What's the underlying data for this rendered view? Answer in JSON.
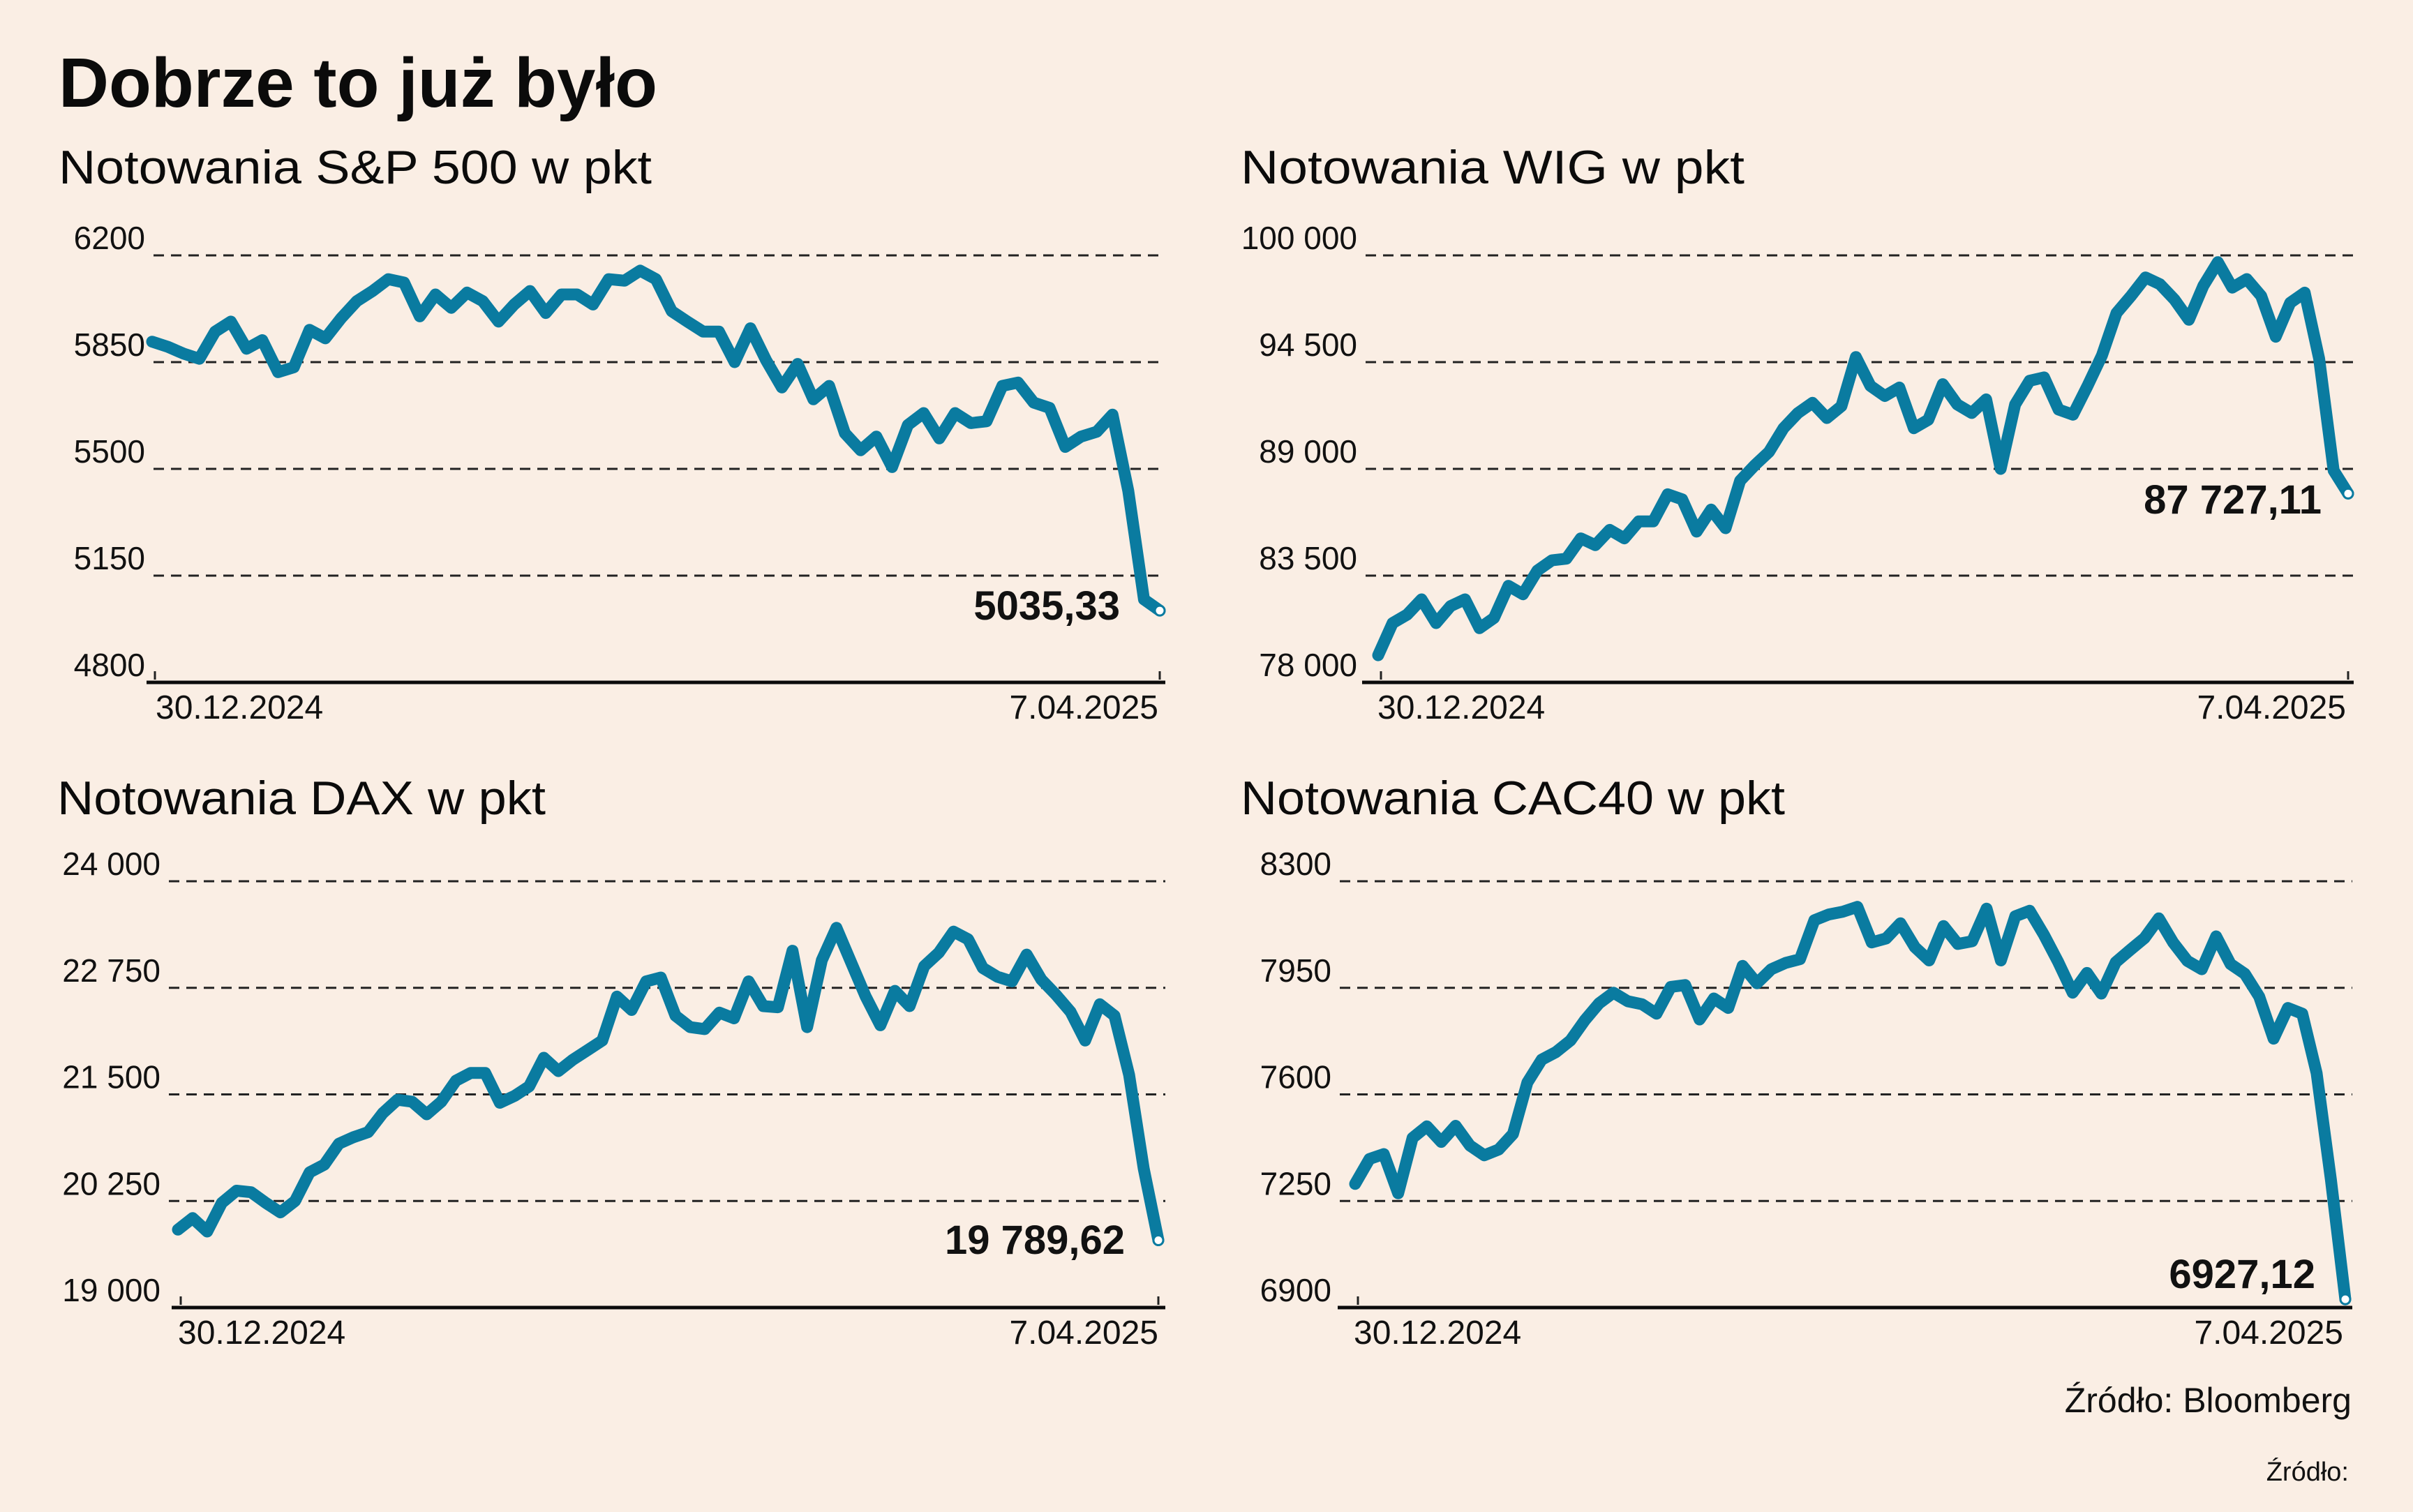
{
  "title": "Dobrze to już było",
  "source": "Źródło: Bloomberg",
  "source_footer": "Źródło:",
  "colors": {
    "background": "#faeee4",
    "line": "#0a7ba0",
    "text": "#0b0b0b"
  },
  "chart_data": [
    {
      "type": "line",
      "title": "Notowania S&P 500 w pkt",
      "x_labels": [
        "30.12.2024",
        "7.04.2025"
      ],
      "yticks": [
        6200,
        5850,
        5500,
        5150,
        4800
      ],
      "ytick_labels": [
        "6200",
        "5850",
        "5500",
        "5150",
        "4800"
      ],
      "ylim": [
        4800,
        6200
      ],
      "grid": true,
      "last_value_label": "5035,33",
      "series": [
        {
          "name": "S&P 500",
          "values": [
            5917,
            5900,
            5878,
            5861,
            5950,
            5983,
            5894,
            5922,
            5817,
            5833,
            5956,
            5928,
            5994,
            6050,
            6083,
            6122,
            6111,
            6000,
            6072,
            6028,
            6078,
            6050,
            5983,
            6039,
            6083,
            6011,
            6072,
            6072,
            6039,
            6122,
            6117,
            6150,
            6122,
            6017,
            5983,
            5950,
            5950,
            5850,
            5961,
            5856,
            5767,
            5844,
            5728,
            5772,
            5617,
            5561,
            5606,
            5506,
            5644,
            5683,
            5600,
            5683,
            5650,
            5656,
            5772,
            5783,
            5717,
            5700,
            5572,
            5606,
            5622,
            5678,
            5428,
            5072,
            5035.33
          ]
        }
      ]
    },
    {
      "type": "line",
      "title": "Notowania WIG w pkt",
      "x_labels": [
        "30.12.2024",
        "7.04.2025"
      ],
      "yticks": [
        100000,
        94500,
        89000,
        83500,
        78000
      ],
      "ytick_labels": [
        "100 000",
        "94 500",
        "89 000",
        "83 500",
        "78 000"
      ],
      "ylim": [
        78000,
        100000
      ],
      "grid": true,
      "last_value_label": "87 727,11",
      "series": [
        {
          "name": "WIG",
          "values": [
            79397,
            81056,
            81492,
            82278,
            81056,
            81929,
            82278,
            80794,
            81318,
            82976,
            82540,
            83762,
            84286,
            84373,
            85421,
            85071,
            85857,
            85421,
            86294,
            86294,
            87691,
            87429,
            85770,
            86905,
            85945,
            88389,
            89175,
            89873,
            91095,
            91881,
            92405,
            91619,
            92230,
            94762,
            93278,
            92754,
            93191,
            91095,
            91532,
            93365,
            92318,
            91881,
            92579,
            89000,
            92318,
            93540,
            93714,
            92056,
            91794,
            93278,
            94849,
            97032,
            97905,
            98865,
            98516,
            97730,
            96683,
            98429,
            99651,
            98341,
            98778,
            97905,
            95810,
            97556,
            98079,
            94675,
            88913,
            87727.11
          ]
        }
      ]
    },
    {
      "type": "line",
      "title": "Notowania DAX w pkt",
      "x_labels": [
        "30.12.2024",
        "7.04.2025"
      ],
      "yticks": [
        24000,
        22750,
        21500,
        20250,
        19000
      ],
      "ytick_labels": [
        "24 000",
        "22 750",
        "21 500",
        "20 250",
        "19 000"
      ],
      "ylim": [
        19000,
        24000
      ],
      "grid": true,
      "last_value_label": "19 789,62",
      "series": [
        {
          "name": "DAX",
          "values": [
            19914,
            20049,
            19892,
            20228,
            20371,
            20353,
            20228,
            20116,
            20250,
            20586,
            20676,
            20922,
            20998,
            21057,
            21281,
            21437,
            21415,
            21267,
            21415,
            21661,
            21751,
            21751,
            21402,
            21482,
            21594,
            21930,
            21773,
            21908,
            22020,
            22132,
            22647,
            22490,
            22826,
            22871,
            22423,
            22289,
            22266,
            22459,
            22392,
            22826,
            22535,
            22522,
            23185,
            22289,
            23073,
            23453,
            23050,
            22647,
            22311,
            22714,
            22535,
            23005,
            23162,
            23409,
            23319,
            22983,
            22880,
            22826,
            23140,
            22849,
            22669,
            22468,
            22132,
            22557,
            22423,
            21729,
            20631,
            19789.62
          ]
        }
      ]
    },
    {
      "type": "line",
      "title": "Notowania CAC40 w pkt",
      "x_labels": [
        "30.12.2024",
        "7.04.2025"
      ],
      "yticks": [
        8300,
        7950,
        7600,
        7250,
        6900
      ],
      "ytick_labels": [
        "8300",
        "7950",
        "7600",
        "7250",
        "6900"
      ],
      "ylim": [
        6900,
        8300
      ],
      "grid": true,
      "last_value_label": "6927,12",
      "series": [
        {
          "name": "CAC40",
          "values": [
            7306,
            7388,
            7404,
            7275,
            7457,
            7495,
            7444,
            7497,
            7432,
            7400,
            7419,
            7470,
            7639,
            7714,
            7739,
            7777,
            7843,
            7899,
            7934,
            7906,
            7896,
            7865,
            7953,
            7959,
            7846,
            7915,
            7884,
            8022,
            7965,
            8011,
            8032,
            8044,
            8172,
            8191,
            8200,
            8216,
            8099,
            8112,
            8162,
            8084,
            8040,
            8153,
            8094,
            8103,
            8210,
            8040,
            8185,
            8203,
            8124,
            8034,
            7934,
            7999,
            7931,
            8034,
            8074,
            8113,
            8178,
            8099,
            8038,
            8011,
            8119,
            8028,
            7996,
            7921,
            7783,
            7884,
            7865,
            7670,
            7319,
            6927.12
          ]
        }
      ]
    }
  ]
}
